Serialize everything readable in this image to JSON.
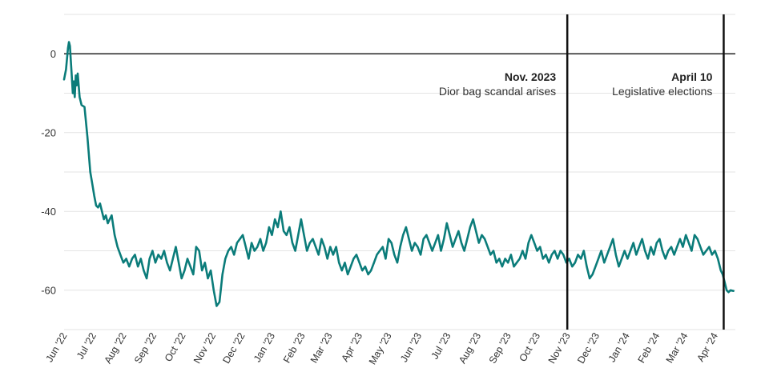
{
  "chart_data": {
    "type": "line",
    "title": "",
    "xlabel": "",
    "ylabel": "",
    "ylim": [
      -70,
      10
    ],
    "yticks": [
      0,
      -20,
      -40,
      -60
    ],
    "grid": "horizontal",
    "x_range": [
      "2022-06-01",
      "2024-04-22"
    ],
    "x_tick_labels": [
      "Jun '22",
      "Jul '22",
      "Aug '22",
      "Sep '22",
      "Oct '22",
      "Nov '22",
      "Dec '22",
      "Jan '23",
      "Feb '23",
      "Mar '23",
      "Apr '23",
      "May '23",
      "Jun '23",
      "Jul '23",
      "Aug '23",
      "Sep '23",
      "Oct '23",
      "Nov '23",
      "Dec '23",
      "Jan '24",
      "Feb '24",
      "Mar '24",
      "Apr '24"
    ],
    "series": [
      {
        "color": "#0b7c7a",
        "points": [
          [
            "2022-06-01",
            -6.5
          ],
          [
            "2022-06-03",
            -4
          ],
          [
            "2022-06-05",
            1.5
          ],
          [
            "2022-06-06",
            3
          ],
          [
            "2022-06-07",
            2
          ],
          [
            "2022-06-08",
            -2
          ],
          [
            "2022-06-10",
            -10
          ],
          [
            "2022-06-11",
            -7
          ],
          [
            "2022-06-12",
            -11
          ],
          [
            "2022-06-13",
            -5.5
          ],
          [
            "2022-06-14",
            -8
          ],
          [
            "2022-06-15",
            -5
          ],
          [
            "2022-06-17",
            -11
          ],
          [
            "2022-06-19",
            -13
          ],
          [
            "2022-06-22",
            -13.5
          ],
          [
            "2022-06-25",
            -21
          ],
          [
            "2022-06-28",
            -30
          ],
          [
            "2022-06-30",
            -33
          ],
          [
            "2022-07-02",
            -36
          ],
          [
            "2022-07-04",
            -38.5
          ],
          [
            "2022-07-06",
            -39
          ],
          [
            "2022-07-08",
            -38
          ],
          [
            "2022-07-10",
            -40
          ],
          [
            "2022-07-12",
            -42
          ],
          [
            "2022-07-14",
            -41
          ],
          [
            "2022-07-16",
            -43
          ],
          [
            "2022-07-18",
            -42
          ],
          [
            "2022-07-20",
            -41
          ],
          [
            "2022-07-23",
            -46
          ],
          [
            "2022-07-26",
            -49
          ],
          [
            "2022-07-29",
            -51
          ],
          [
            "2022-08-01",
            -53
          ],
          [
            "2022-08-04",
            -52
          ],
          [
            "2022-08-07",
            -54
          ],
          [
            "2022-08-10",
            -52
          ],
          [
            "2022-08-13",
            -51
          ],
          [
            "2022-08-16",
            -54
          ],
          [
            "2022-08-19",
            -52
          ],
          [
            "2022-08-22",
            -55
          ],
          [
            "2022-08-25",
            -57
          ],
          [
            "2022-08-28",
            -52
          ],
          [
            "2022-08-31",
            -50
          ],
          [
            "2022-09-03",
            -53
          ],
          [
            "2022-09-06",
            -51
          ],
          [
            "2022-09-09",
            -52
          ],
          [
            "2022-09-12",
            -50
          ],
          [
            "2022-09-15",
            -53
          ],
          [
            "2022-09-18",
            -55
          ],
          [
            "2022-09-21",
            -52
          ],
          [
            "2022-09-24",
            -49
          ],
          [
            "2022-09-27",
            -53
          ],
          [
            "2022-09-30",
            -57
          ],
          [
            "2022-10-03",
            -55
          ],
          [
            "2022-10-06",
            -52
          ],
          [
            "2022-10-09",
            -54
          ],
          [
            "2022-10-12",
            -56
          ],
          [
            "2022-10-15",
            -49
          ],
          [
            "2022-10-18",
            -50
          ],
          [
            "2022-10-21",
            -55
          ],
          [
            "2022-10-24",
            -53
          ],
          [
            "2022-10-27",
            -57
          ],
          [
            "2022-10-30",
            -55
          ],
          [
            "2022-11-02",
            -60
          ],
          [
            "2022-11-05",
            -64
          ],
          [
            "2022-11-08",
            -63
          ],
          [
            "2022-11-11",
            -56
          ],
          [
            "2022-11-14",
            -52
          ],
          [
            "2022-11-17",
            -50
          ],
          [
            "2022-11-20",
            -49
          ],
          [
            "2022-11-23",
            -51
          ],
          [
            "2022-11-26",
            -48
          ],
          [
            "2022-11-29",
            -47
          ],
          [
            "2022-12-02",
            -46
          ],
          [
            "2022-12-05",
            -49
          ],
          [
            "2022-12-08",
            -52
          ],
          [
            "2022-12-11",
            -48
          ],
          [
            "2022-12-14",
            -50
          ],
          [
            "2022-12-17",
            -49
          ],
          [
            "2022-12-20",
            -47
          ],
          [
            "2022-12-23",
            -50
          ],
          [
            "2022-12-26",
            -48
          ],
          [
            "2022-12-29",
            -44
          ],
          [
            "2023-01-01",
            -46
          ],
          [
            "2023-01-04",
            -42
          ],
          [
            "2023-01-07",
            -44
          ],
          [
            "2023-01-10",
            -40
          ],
          [
            "2023-01-13",
            -45
          ],
          [
            "2023-01-16",
            -46
          ],
          [
            "2023-01-19",
            -44
          ],
          [
            "2023-01-22",
            -48
          ],
          [
            "2023-01-25",
            -50
          ],
          [
            "2023-01-28",
            -46
          ],
          [
            "2023-01-31",
            -42
          ],
          [
            "2023-02-03",
            -46
          ],
          [
            "2023-02-06",
            -50
          ],
          [
            "2023-02-09",
            -48
          ],
          [
            "2023-02-12",
            -47
          ],
          [
            "2023-02-15",
            -49
          ],
          [
            "2023-02-18",
            -51
          ],
          [
            "2023-02-21",
            -47
          ],
          [
            "2023-02-24",
            -49
          ],
          [
            "2023-02-27",
            -52
          ],
          [
            "2023-03-02",
            -49
          ],
          [
            "2023-03-05",
            -51
          ],
          [
            "2023-03-08",
            -49
          ],
          [
            "2023-03-11",
            -53
          ],
          [
            "2023-03-14",
            -55
          ],
          [
            "2023-03-17",
            -53
          ],
          [
            "2023-03-20",
            -56
          ],
          [
            "2023-03-23",
            -54
          ],
          [
            "2023-03-26",
            -52
          ],
          [
            "2023-03-29",
            -51
          ],
          [
            "2023-04-01",
            -53
          ],
          [
            "2023-04-04",
            -55
          ],
          [
            "2023-04-07",
            -54
          ],
          [
            "2023-04-10",
            -56
          ],
          [
            "2023-04-13",
            -55
          ],
          [
            "2023-04-16",
            -53
          ],
          [
            "2023-04-19",
            -51
          ],
          [
            "2023-04-22",
            -50
          ],
          [
            "2023-04-25",
            -49
          ],
          [
            "2023-04-28",
            -52
          ],
          [
            "2023-05-01",
            -47
          ],
          [
            "2023-05-04",
            -48
          ],
          [
            "2023-05-07",
            -51
          ],
          [
            "2023-05-10",
            -53
          ],
          [
            "2023-05-13",
            -49
          ],
          [
            "2023-05-16",
            -46
          ],
          [
            "2023-05-19",
            -44
          ],
          [
            "2023-05-22",
            -47
          ],
          [
            "2023-05-25",
            -50
          ],
          [
            "2023-05-28",
            -48
          ],
          [
            "2023-05-31",
            -49
          ],
          [
            "2023-06-03",
            -51
          ],
          [
            "2023-06-06",
            -47
          ],
          [
            "2023-06-09",
            -46
          ],
          [
            "2023-06-12",
            -48
          ],
          [
            "2023-06-15",
            -50
          ],
          [
            "2023-06-18",
            -48
          ],
          [
            "2023-06-21",
            -46
          ],
          [
            "2023-06-24",
            -50
          ],
          [
            "2023-06-27",
            -47
          ],
          [
            "2023-06-30",
            -43
          ],
          [
            "2023-07-03",
            -46
          ],
          [
            "2023-07-06",
            -49
          ],
          [
            "2023-07-09",
            -47
          ],
          [
            "2023-07-12",
            -45
          ],
          [
            "2023-07-15",
            -48
          ],
          [
            "2023-07-18",
            -50
          ],
          [
            "2023-07-21",
            -47
          ],
          [
            "2023-07-24",
            -44
          ],
          [
            "2023-07-27",
            -42
          ],
          [
            "2023-07-30",
            -45
          ],
          [
            "2023-08-02",
            -48
          ],
          [
            "2023-08-05",
            -46
          ],
          [
            "2023-08-08",
            -47
          ],
          [
            "2023-08-11",
            -49
          ],
          [
            "2023-08-14",
            -51
          ],
          [
            "2023-08-17",
            -50
          ],
          [
            "2023-08-20",
            -53
          ],
          [
            "2023-08-23",
            -52
          ],
          [
            "2023-08-26",
            -54
          ],
          [
            "2023-08-29",
            -52
          ],
          [
            "2023-09-01",
            -53
          ],
          [
            "2023-09-04",
            -51
          ],
          [
            "2023-09-07",
            -54
          ],
          [
            "2023-09-10",
            -53
          ],
          [
            "2023-09-13",
            -52
          ],
          [
            "2023-09-16",
            -50
          ],
          [
            "2023-09-19",
            -52
          ],
          [
            "2023-09-22",
            -48
          ],
          [
            "2023-09-25",
            -46
          ],
          [
            "2023-09-28",
            -48
          ],
          [
            "2023-10-01",
            -50
          ],
          [
            "2023-10-04",
            -49
          ],
          [
            "2023-10-07",
            -52
          ],
          [
            "2023-10-10",
            -51
          ],
          [
            "2023-10-13",
            -53
          ],
          [
            "2023-10-16",
            -51
          ],
          [
            "2023-10-19",
            -50
          ],
          [
            "2023-10-22",
            -52
          ],
          [
            "2023-10-25",
            -50
          ],
          [
            "2023-10-28",
            -51
          ],
          [
            "2023-10-31",
            -53
          ],
          [
            "2023-11-03",
            -52
          ],
          [
            "2023-11-06",
            -54
          ],
          [
            "2023-11-09",
            -53
          ],
          [
            "2023-11-12",
            -51
          ],
          [
            "2023-11-15",
            -52
          ],
          [
            "2023-11-18",
            -50
          ],
          [
            "2023-11-21",
            -54
          ],
          [
            "2023-11-24",
            -57
          ],
          [
            "2023-11-27",
            -56
          ],
          [
            "2023-11-30",
            -54
          ],
          [
            "2023-12-03",
            -52
          ],
          [
            "2023-12-06",
            -50
          ],
          [
            "2023-12-09",
            -53
          ],
          [
            "2023-12-12",
            -51
          ],
          [
            "2023-12-15",
            -49
          ],
          [
            "2023-12-18",
            -47
          ],
          [
            "2023-12-21",
            -51
          ],
          [
            "2023-12-24",
            -54
          ],
          [
            "2023-12-27",
            -52
          ],
          [
            "2023-12-30",
            -50
          ],
          [
            "2024-01-02",
            -52
          ],
          [
            "2024-01-05",
            -50
          ],
          [
            "2024-01-08",
            -48
          ],
          [
            "2024-01-11",
            -51
          ],
          [
            "2024-01-14",
            -49
          ],
          [
            "2024-01-17",
            -47
          ],
          [
            "2024-01-20",
            -50
          ],
          [
            "2024-01-23",
            -52
          ],
          [
            "2024-01-26",
            -49
          ],
          [
            "2024-01-29",
            -51
          ],
          [
            "2024-02-01",
            -48
          ],
          [
            "2024-02-04",
            -47
          ],
          [
            "2024-02-07",
            -50
          ],
          [
            "2024-02-10",
            -52
          ],
          [
            "2024-02-13",
            -50
          ],
          [
            "2024-02-16",
            -49
          ],
          [
            "2024-02-19",
            -51
          ],
          [
            "2024-02-22",
            -49
          ],
          [
            "2024-02-25",
            -47
          ],
          [
            "2024-02-28",
            -49
          ],
          [
            "2024-03-02",
            -46
          ],
          [
            "2024-03-05",
            -48
          ],
          [
            "2024-03-08",
            -50
          ],
          [
            "2024-03-11",
            -46
          ],
          [
            "2024-03-14",
            -47
          ],
          [
            "2024-03-17",
            -49
          ],
          [
            "2024-03-20",
            -51
          ],
          [
            "2024-03-23",
            -50
          ],
          [
            "2024-03-26",
            -49
          ],
          [
            "2024-03-29",
            -51
          ],
          [
            "2024-04-01",
            -50
          ],
          [
            "2024-04-04",
            -52
          ],
          [
            "2024-04-07",
            -55
          ],
          [
            "2024-04-09",
            -56
          ],
          [
            "2024-04-11",
            -58
          ],
          [
            "2024-04-13",
            -60
          ],
          [
            "2024-04-15",
            -60.5
          ],
          [
            "2024-04-17",
            -60
          ],
          [
            "2024-04-20",
            -60.2
          ]
        ]
      }
    ],
    "annotations": [
      {
        "date": "2023-11-01",
        "title": "Nov. 2023",
        "text": "Dior bag scandal arises"
      },
      {
        "date": "2024-04-10",
        "title": "April 10",
        "text": "Legislative elections"
      }
    ]
  }
}
